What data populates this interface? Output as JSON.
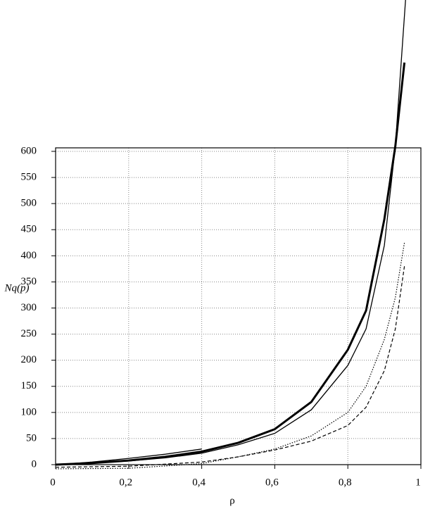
{
  "chart_data": {
    "type": "line",
    "x_label": "ρ",
    "y_label": "Nq(p)",
    "xlim": [
      0,
      1
    ],
    "ylim": [
      0,
      600
    ],
    "xticks": [
      0,
      {
        "value": 0.2,
        "label": "0,2"
      },
      {
        "value": 0.4,
        "label": "0,4"
      },
      {
        "value": 0.6,
        "label": "0,6"
      },
      {
        "value": 0.8,
        "label": "0,8"
      },
      1
    ],
    "yticks": [
      0,
      50,
      100,
      150,
      200,
      250,
      300,
      350,
      400,
      450,
      500,
      550,
      600
    ],
    "grid": true,
    "series": [
      {
        "color": "#000000",
        "linewidth": 3,
        "style": "solid",
        "x": [
          0,
          0.1,
          0.2,
          0.3,
          0.4,
          0.5,
          0.6,
          0.7,
          0.8,
          0.85,
          0.9,
          0.93,
          0.955
        ],
        "values": [
          0,
          3,
          8,
          15,
          25,
          42,
          68,
          120,
          220,
          295,
          470,
          610,
          770
        ]
      },
      {
        "color": "#000000",
        "linewidth": 1.3,
        "style": "solid",
        "x": [
          0,
          0.1,
          0.2,
          0.3,
          0.4,
          0.5,
          0.6,
          0.7,
          0.8,
          0.85,
          0.9,
          0.93,
          0.958
        ],
        "values": [
          0,
          3,
          7,
          13,
          22,
          38,
          60,
          105,
          190,
          260,
          420,
          610,
          890
        ]
      },
      {
        "color": "#000000",
        "linewidth": 1.3,
        "style": "solid",
        "x": [
          0,
          0.1,
          0.2,
          0.3,
          0.4
        ],
        "values": [
          0,
          5,
          12,
          20,
          30
        ]
      },
      {
        "color": "#000000",
        "linewidth": 1.2,
        "style": "dotted",
        "x": [
          0,
          0.2,
          0.4,
          0.5,
          0.6,
          0.7,
          0.8,
          0.85,
          0.9,
          0.93,
          0.955
        ],
        "values": [
          -8,
          -7,
          2,
          15,
          30,
          55,
          100,
          150,
          240,
          320,
          425
        ]
      },
      {
        "color": "#000000",
        "linewidth": 1.2,
        "style": "dashed",
        "x": [
          0,
          0.2,
          0.4,
          0.5,
          0.6,
          0.7,
          0.8,
          0.85,
          0.9,
          0.93,
          0.955
        ],
        "values": [
          -5,
          -3,
          5,
          15,
          28,
          45,
          75,
          110,
          180,
          260,
          380
        ]
      }
    ]
  }
}
